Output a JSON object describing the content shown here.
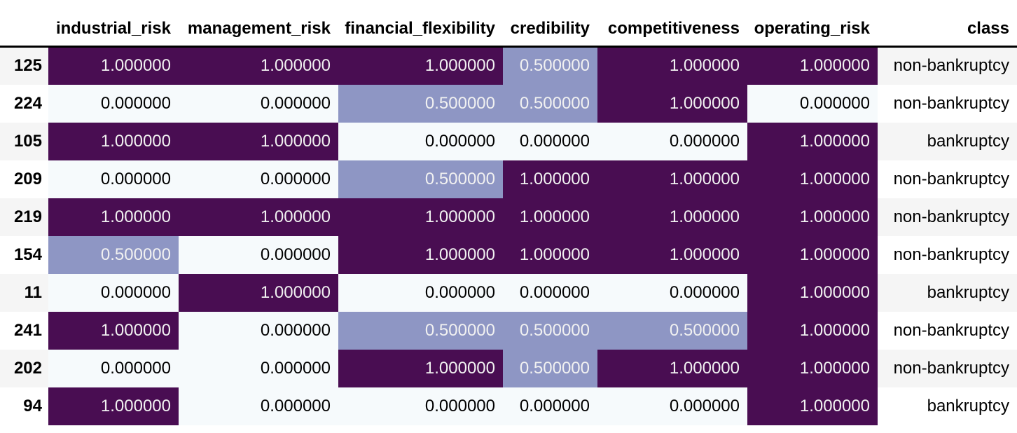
{
  "table": {
    "index_header": "",
    "columns": [
      "industrial_risk",
      "management_risk",
      "financial_flexibility",
      "credibility",
      "competitiveness",
      "operating_risk",
      "class"
    ],
    "rows": [
      {
        "index": "125",
        "values": [
          "1.000000",
          "1.000000",
          "1.000000",
          "0.500000",
          "1.000000",
          "1.000000"
        ],
        "class": "non-bankruptcy"
      },
      {
        "index": "224",
        "values": [
          "0.000000",
          "0.000000",
          "0.500000",
          "0.500000",
          "1.000000",
          "0.000000"
        ],
        "class": "non-bankruptcy"
      },
      {
        "index": "105",
        "values": [
          "1.000000",
          "1.000000",
          "0.000000",
          "0.000000",
          "0.000000",
          "1.000000"
        ],
        "class": "bankruptcy"
      },
      {
        "index": "209",
        "values": [
          "0.000000",
          "0.000000",
          "0.500000",
          "1.000000",
          "1.000000",
          "1.000000"
        ],
        "class": "non-bankruptcy"
      },
      {
        "index": "219",
        "values": [
          "1.000000",
          "1.000000",
          "1.000000",
          "1.000000",
          "1.000000",
          "1.000000"
        ],
        "class": "non-bankruptcy"
      },
      {
        "index": "154",
        "values": [
          "0.500000",
          "0.000000",
          "1.000000",
          "1.000000",
          "1.000000",
          "1.000000"
        ],
        "class": "non-bankruptcy"
      },
      {
        "index": "11",
        "values": [
          "0.000000",
          "1.000000",
          "0.000000",
          "0.000000",
          "0.000000",
          "1.000000"
        ],
        "class": "bankruptcy"
      },
      {
        "index": "241",
        "values": [
          "1.000000",
          "0.000000",
          "0.500000",
          "0.500000",
          "0.500000",
          "1.000000"
        ],
        "class": "non-bankruptcy"
      },
      {
        "index": "202",
        "values": [
          "0.000000",
          "0.000000",
          "1.000000",
          "0.500000",
          "1.000000",
          "1.000000"
        ],
        "class": "non-bankruptcy"
      },
      {
        "index": "94",
        "values": [
          "1.000000",
          "0.000000",
          "0.000000",
          "0.000000",
          "0.000000",
          "1.000000"
        ],
        "class": "bankruptcy"
      }
    ]
  },
  "colors": {
    "header_border": "#000000",
    "row_stripe_odd": "#f5f5f5",
    "row_stripe_even": "#ffffff",
    "header_text": "#000000"
  },
  "colormap": {
    "0": {
      "bg": "#f6fafc",
      "fg": "#000000"
    },
    "0.5": {
      "bg": "#8e96c4",
      "fg": "#f1f1f1"
    },
    "1": {
      "bg": "#490d52",
      "fg": "#f1f1f1"
    }
  }
}
